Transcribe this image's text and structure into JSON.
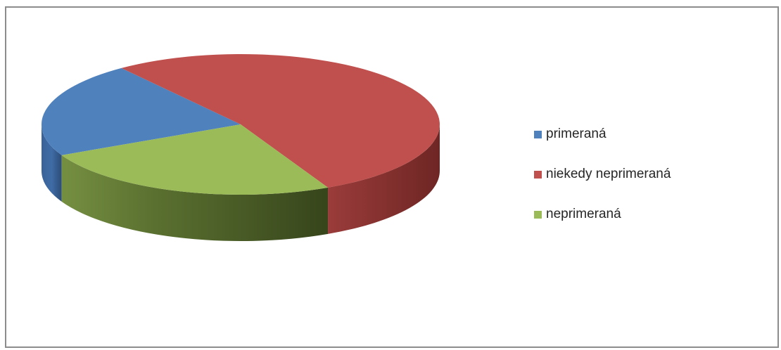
{
  "chart_data": {
    "type": "pie",
    "style": "3d",
    "title": "",
    "categories": [
      "primeraná",
      "niekedy neprimeraná",
      "neprimeraná"
    ],
    "values": [
      22,
      53,
      25
    ],
    "colors": [
      "#4f81bd",
      "#c0504d",
      "#9bbb59"
    ],
    "legend": {
      "position": "right",
      "entries": [
        "primeraná",
        "niekedy neprimeraná",
        "neprimeraná"
      ]
    }
  }
}
